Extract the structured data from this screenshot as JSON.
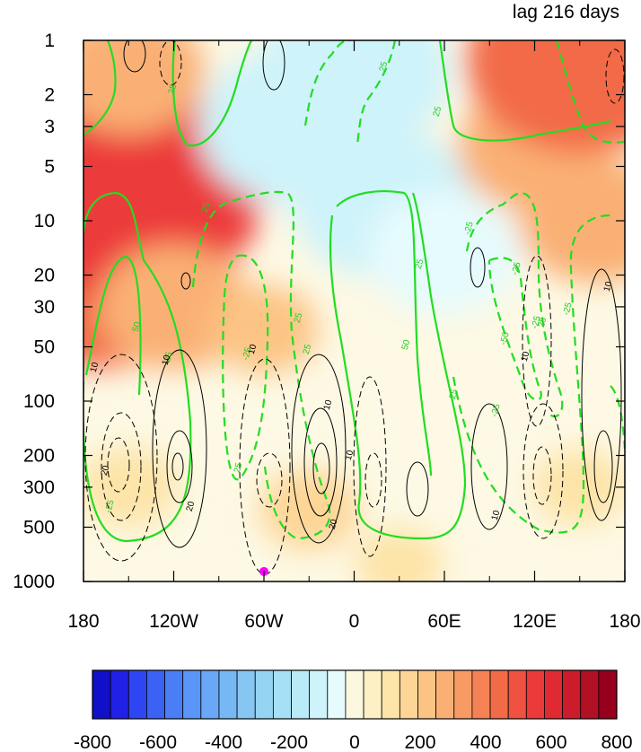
{
  "chart_data": {
    "type": "heatmap",
    "title_right": "lag 216 days",
    "x": {
      "ticks": [
        -180,
        -120,
        -60,
        0,
        60,
        120,
        180
      ],
      "tick_labels": [
        "180",
        "120W",
        "60W",
        "0",
        "60E",
        "120E",
        "180"
      ],
      "range": [
        -180,
        180
      ]
    },
    "y": {
      "scale": "log",
      "reversed": true,
      "ticks": [
        1,
        2,
        3,
        5,
        10,
        20,
        30,
        50,
        100,
        200,
        300,
        500,
        1000
      ],
      "tick_labels": [
        "1",
        "2",
        "3",
        "5",
        "10",
        "20",
        "30",
        "50",
        "100",
        "200",
        "300",
        "500",
        "1000"
      ],
      "range": [
        1,
        1000
      ]
    },
    "colorbar": {
      "levels": [
        -800,
        -750,
        -700,
        -650,
        -600,
        -550,
        -500,
        -450,
        -400,
        -350,
        -300,
        -250,
        -200,
        -150,
        -100,
        -50,
        0,
        50,
        100,
        150,
        200,
        250,
        300,
        350,
        400,
        450,
        500,
        550,
        600,
        650,
        700,
        750,
        800
      ],
      "tick_values": [
        -800,
        -600,
        -400,
        -200,
        0,
        200,
        400,
        600,
        800
      ],
      "tick_labels": [
        "-800",
        "-600",
        "-400",
        "-200",
        "0",
        "200",
        "400",
        "600",
        "800"
      ],
      "colors": [
        "#1010c8",
        "#2020e6",
        "#2e46f2",
        "#3a62f4",
        "#4a7ef6",
        "#5a96f7",
        "#68a8f6",
        "#76b8f4",
        "#86c6f3",
        "#96d4f4",
        "#a6e0f6",
        "#b8eaf8",
        "#cef3fa",
        "#e6fbfd",
        "#fbf8df",
        "#fcf0c4",
        "#fde4a8",
        "#fdd596",
        "#fcc484",
        "#fab074",
        "#f89a64",
        "#f58254",
        "#f26b47",
        "#ef5240",
        "#ec3a3a",
        "#e02a32",
        "#cc1c2c",
        "#b21024",
        "#96001c"
      ]
    },
    "shading_field": [
      {
        "lon": -170,
        "pressure": 20,
        "value": 300
      },
      {
        "lon": -150,
        "pressure": 7,
        "value": 380
      },
      {
        "lon": -150,
        "pressure": 1.5,
        "value": 150
      },
      {
        "lon": -120,
        "pressure": 30,
        "value": 150
      },
      {
        "lon": -60,
        "pressure": 40,
        "value": 60
      },
      {
        "lon": -40,
        "pressure": 3,
        "value": -230
      },
      {
        "lon": 0,
        "pressure": 1.5,
        "value": -230
      },
      {
        "lon": 20,
        "pressure": 8,
        "value": -210
      },
      {
        "lon": 60,
        "pressure": 15,
        "value": -150
      },
      {
        "lon": 120,
        "pressure": 4,
        "value": 150
      },
      {
        "lon": 150,
        "pressure": 1.3,
        "value": 300
      },
      {
        "lon": 160,
        "pressure": 10,
        "value": 150
      },
      {
        "lon": -150,
        "pressure": 300,
        "value": -40
      },
      {
        "lon": 150,
        "pressure": 300,
        "value": -30
      },
      {
        "lon": -30,
        "pressure": 400,
        "value": 40
      },
      {
        "lon": 30,
        "pressure": 800,
        "value": -20
      }
    ],
    "contour_labels_green": [
      "25",
      "25",
      "25",
      "25",
      "50",
      "25",
      "25",
      "-25",
      "-25",
      "-25",
      "50",
      "-25",
      "-25",
      "-25",
      "25",
      "25",
      "-25",
      "25",
      "-50",
      "25",
      "-25"
    ],
    "contour_labels_black": [
      "10",
      "10",
      "10",
      "20",
      "20",
      "10",
      "10",
      "20",
      "10",
      "10",
      "10"
    ],
    "marker": {
      "lon": -60,
      "pressure": 880,
      "color": "#ff00ff"
    }
  }
}
